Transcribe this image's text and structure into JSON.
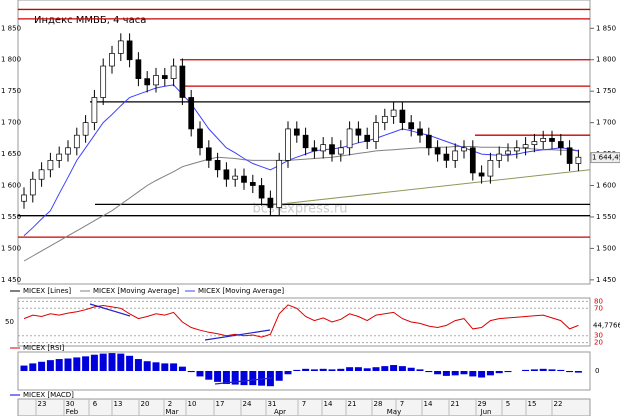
{
  "chart_data": {
    "type": "candlestick",
    "title": "Индекс ММВБ, 4 часа",
    "watermark": "bcs-express.ru",
    "open": [
      1575,
      1585,
      1610,
      1625,
      1640,
      1650,
      1660,
      1680,
      1700,
      1740,
      1790,
      1810,
      1830,
      1800,
      1770,
      1760,
      1775,
      1770,
      1790,
      1740,
      1690,
      1660,
      1640,
      1625,
      1610,
      1615,
      1605,
      1600,
      1580,
      1565,
      1640,
      1690,
      1680,
      1660,
      1655,
      1665,
      1650,
      1660,
      1690,
      1680,
      1670,
      1700,
      1710,
      1720,
      1700,
      1690,
      1680,
      1660,
      1650,
      1640,
      1655,
      1660,
      1620,
      1615,
      1640,
      1650,
      1655,
      1660,
      1665,
      1670,
      1675,
      1670,
      1660,
      1635
    ],
    "high": [
      1597,
      1622,
      1637,
      1652,
      1662,
      1672,
      1692,
      1712,
      1752,
      1802,
      1822,
      1842,
      1842,
      1812,
      1782,
      1787,
      1787,
      1802,
      1802,
      1752,
      1702,
      1672,
      1652,
      1637,
      1627,
      1627,
      1617,
      1612,
      1592,
      1652,
      1702,
      1702,
      1692,
      1672,
      1677,
      1677,
      1672,
      1702,
      1702,
      1692,
      1712,
      1722,
      1732,
      1732,
      1712,
      1702,
      1692,
      1672,
      1662,
      1667,
      1672,
      1672,
      1632,
      1652,
      1662,
      1667,
      1672,
      1677,
      1682,
      1687,
      1687,
      1682,
      1672,
      1657
    ],
    "low": [
      1563,
      1573,
      1598,
      1613,
      1628,
      1638,
      1648,
      1668,
      1688,
      1728,
      1778,
      1798,
      1788,
      1758,
      1748,
      1748,
      1758,
      1758,
      1728,
      1678,
      1648,
      1628,
      1613,
      1598,
      1598,
      1593,
      1588,
      1568,
      1553,
      1553,
      1628,
      1668,
      1648,
      1643,
      1643,
      1638,
      1638,
      1648,
      1668,
      1658,
      1658,
      1688,
      1698,
      1688,
      1678,
      1668,
      1648,
      1638,
      1628,
      1628,
      1643,
      1608,
      1603,
      1603,
      1628,
      1638,
      1643,
      1648,
      1653,
      1658,
      1658,
      1648,
      1623,
      1623
    ],
    "close": [
      1585,
      1610,
      1625,
      1640,
      1650,
      1660,
      1680,
      1700,
      1740,
      1790,
      1810,
      1830,
      1800,
      1770,
      1760,
      1775,
      1770,
      1790,
      1740,
      1690,
      1660,
      1640,
      1625,
      1610,
      1615,
      1605,
      1600,
      1580,
      1565,
      1640,
      1690,
      1680,
      1660,
      1655,
      1665,
      1650,
      1660,
      1690,
      1680,
      1670,
      1700,
      1710,
      1720,
      1700,
      1690,
      1680,
      1660,
      1650,
      1640,
      1655,
      1660,
      1620,
      1615,
      1640,
      1650,
      1655,
      1660,
      1665,
      1670,
      1675,
      1670,
      1660,
      1635,
      1645
    ],
    "last_price": {
      "value": 1644.45,
      "label": "1 644,45"
    },
    "series": [
      {
        "name": "MICEX [Lines]",
        "color": "#000000"
      },
      {
        "name": "MICEX [Moving Average]",
        "color": "#808080",
        "values": [
          1480,
          1488,
          1496,
          1504,
          1512,
          1520,
          1528,
          1536,
          1544,
          1552,
          1560,
          1570,
          1580,
          1590,
          1600,
          1608,
          1615,
          1622,
          1630,
          1634,
          1638,
          1642,
          1645,
          1644,
          1643,
          1641,
          1640,
          1640,
          1640,
          1640,
          1640,
          1641,
          1642,
          1643,
          1644,
          1645,
          1647,
          1649,
          1651,
          1653,
          1655,
          1656,
          1657,
          1658,
          1659,
          1660,
          1660,
          1661,
          1661,
          1662,
          1662,
          1662,
          1661,
          1661,
          1661,
          1660,
          1660,
          1659,
          1658,
          1657,
          1657,
          1656,
          1656,
          1655
        ]
      },
      {
        "name": "MICEX [Moving Average]",
        "color": "#4040ff",
        "values": [
          1520,
          1533,
          1547,
          1560,
          1587,
          1613,
          1640,
          1660,
          1680,
          1700,
          1713,
          1727,
          1740,
          1745,
          1750,
          1755,
          1758,
          1760,
          1745,
          1730,
          1710,
          1690,
          1675,
          1660,
          1652,
          1643,
          1635,
          1630,
          1625,
          1632,
          1640,
          1645,
          1650,
          1655,
          1657,
          1658,
          1660,
          1664,
          1668,
          1671,
          1675,
          1680,
          1685,
          1690,
          1687,
          1683,
          1680,
          1675,
          1670,
          1665,
          1660,
          1655,
          1650,
          1649,
          1648,
          1648,
          1650,
          1653,
          1655,
          1657,
          1658,
          1660,
          1658,
          1655
        ]
      }
    ],
    "levels": [
      {
        "value": 1880,
        "color": "#cc0000"
      },
      {
        "value": 1865,
        "color": "#cc0000"
      },
      {
        "value": 1800,
        "color": "#cc0000"
      },
      {
        "value": 1758,
        "color": "#cc0000"
      },
      {
        "value": 1733,
        "color": "#000000"
      },
      {
        "value": 1680,
        "color": "#cc0000"
      },
      {
        "value": 1570,
        "color": "#000000"
      },
      {
        "value": 1552,
        "color": "#000000"
      },
      {
        "value": 1518,
        "color": "#cc0000"
      }
    ],
    "trendline": {
      "color": "#8a9a5b",
      "values": [
        1568,
        1625
      ]
    },
    "ylim": [
      1445,
      1895
    ],
    "yticks": [
      {
        "value": 1450,
        "label": "1 450"
      },
      {
        "value": 1500,
        "label": "1 500"
      },
      {
        "value": 1550,
        "label": "1 550"
      },
      {
        "value": 1600,
        "label": "1 600"
      },
      {
        "value": 1650,
        "label": "1 650"
      },
      {
        "value": 1700,
        "label": "1 700"
      },
      {
        "value": 1750,
        "label": "1 750"
      },
      {
        "value": 1800,
        "label": "1 800"
      },
      {
        "value": 1850,
        "label": "1 850"
      }
    ],
    "rsi": {
      "name": "MICEX [RSI]",
      "color": "#dd0000",
      "ylim": [
        15,
        85
      ],
      "yticks": [
        20,
        30,
        50,
        70,
        80
      ],
      "values": [
        55,
        60,
        58,
        62,
        60,
        63,
        65,
        68,
        72,
        74,
        72,
        70,
        62,
        55,
        58,
        62,
        60,
        64,
        50,
        42,
        38,
        35,
        33,
        30,
        32,
        30,
        31,
        28,
        32,
        62,
        75,
        70,
        58,
        52,
        56,
        50,
        54,
        62,
        58,
        52,
        60,
        62,
        64,
        55,
        50,
        48,
        44,
        42,
        45,
        52,
        55,
        40,
        42,
        52,
        55,
        56,
        57,
        58,
        59,
        60,
        56,
        52,
        40,
        45
      ],
      "last": {
        "value": 44.77669,
        "label": "44,77669"
      }
    },
    "macd": {
      "name": "MICEX [MACD]",
      "color": "#0000dd",
      "ylim": [
        -35,
        35
      ],
      "yticks": [
        0
      ],
      "values": [
        10,
        14,
        17,
        20,
        22,
        23,
        25,
        27,
        30,
        32,
        33,
        32,
        28,
        22,
        18,
        16,
        14,
        14,
        8,
        -2,
        -10,
        -16,
        -20,
        -24,
        -25,
        -26,
        -26,
        -27,
        -28,
        -18,
        -6,
        2,
        4,
        3,
        4,
        3,
        4,
        7,
        7,
        5,
        7,
        9,
        11,
        9,
        6,
        3,
        -2,
        -6,
        -9,
        -8,
        -6,
        -10,
        -12,
        -8,
        -4,
        -2,
        0,
        2,
        3,
        4,
        3,
        2,
        -2,
        -3
      ]
    },
    "x_labels": [
      "23",
      "30",
      "6",
      "13",
      "20",
      "2",
      "10",
      "17",
      "24",
      "31",
      "7",
      "14",
      "21",
      "28",
      "7",
      "14",
      "21",
      "29",
      "5",
      "15",
      "22"
    ],
    "months": [
      "Feb",
      "Mar",
      "Apr",
      "May",
      "Jun"
    ]
  }
}
